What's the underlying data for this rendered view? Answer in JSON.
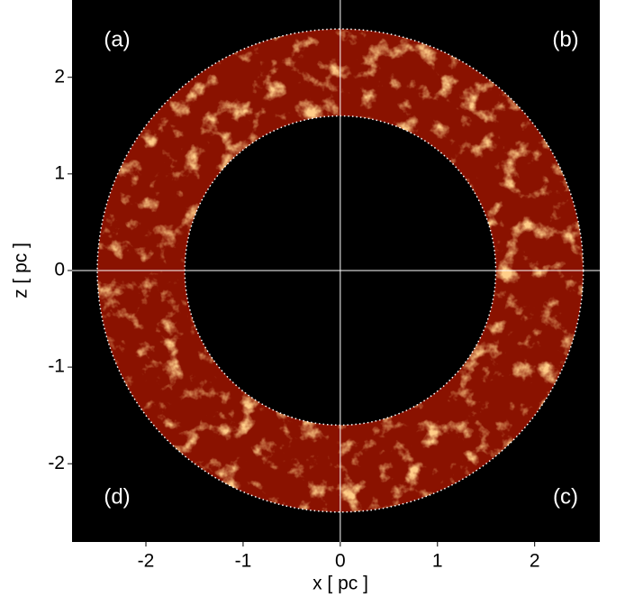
{
  "chart_data": {
    "type": "image",
    "xlabel": "x [ pc ]",
    "ylabel": "z [ pc ]",
    "xlim": [
      -2.76,
      2.67
    ],
    "ylim": [
      -2.81,
      2.8
    ],
    "xticks": [
      -2,
      -1,
      0,
      1,
      2
    ],
    "yticks": [
      -2,
      -1,
      0,
      1,
      2
    ],
    "guide_lines": {
      "x": 0,
      "y": 0,
      "color": "#ffffff"
    },
    "circles": [
      {
        "r": 2.5,
        "color": "#ffffff"
      },
      {
        "r": 1.6,
        "color": "#ffffff"
      }
    ],
    "ring_color": "#8a1200",
    "background": "#000000",
    "annotations": [
      {
        "text": "(a)",
        "corner": "top-left"
      },
      {
        "text": "(b)",
        "corner": "top-right"
      },
      {
        "text": "(d)",
        "corner": "bottom-left"
      },
      {
        "text": "(c)",
        "corner": "bottom-right"
      }
    ]
  }
}
